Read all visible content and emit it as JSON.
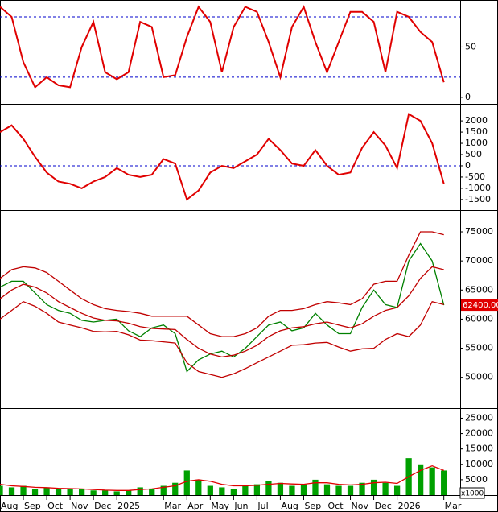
{
  "chart_data": [
    {
      "type": "line",
      "ylim": [
        -6.5,
        96.8
      ],
      "yticks": [
        0,
        50
      ],
      "levels": [
        20,
        80
      ],
      "xlim": [
        0,
        19.7
      ],
      "x": [
        0,
        0.5,
        1,
        1.5,
        2,
        2.5,
        3,
        3.5,
        4,
        4.5,
        5,
        5.5,
        6,
        6.5,
        7,
        7.5,
        8,
        8.5,
        9,
        9.5,
        10,
        10.5,
        11,
        11.5,
        12,
        12.5,
        13,
        13.5,
        14,
        14.5,
        15,
        15.5,
        16,
        16.5,
        17,
        17.5,
        18,
        18.5,
        19
      ],
      "series": [
        {
          "color": "#e00000",
          "values": [
            90,
            80,
            35,
            10,
            20,
            12,
            10,
            50,
            75,
            25,
            18,
            25,
            75,
            70,
            20,
            22,
            60,
            90,
            75,
            25,
            70,
            90,
            85,
            55,
            20,
            70,
            90,
            55,
            25,
            55,
            85,
            85,
            75,
            25,
            85,
            80,
            65,
            55,
            15
          ]
        }
      ]
    },
    {
      "type": "line",
      "ylim": [
        -1970,
        2720
      ],
      "yticks": [
        -1500,
        -1000,
        -500,
        0,
        500,
        1000,
        1500,
        2000
      ],
      "levels": [
        0
      ],
      "xlim": [
        0,
        19.7
      ],
      "x": [
        0,
        0.5,
        1,
        1.5,
        2,
        2.5,
        3,
        3.5,
        4,
        4.5,
        5,
        5.5,
        6,
        6.5,
        7,
        7.5,
        8,
        8.5,
        9,
        9.5,
        10,
        10.5,
        11,
        11.5,
        12,
        12.5,
        13,
        13.5,
        14,
        14.5,
        15,
        15.5,
        16,
        16.5,
        17,
        17.5,
        18,
        18.5,
        19
      ],
      "series": [
        {
          "color": "#e00000",
          "values": [
            1500,
            1800,
            1200,
            400,
            -300,
            -700,
            -800,
            -1000,
            -700,
            -500,
            -100,
            -400,
            -500,
            -400,
            300,
            100,
            -1500,
            -1100,
            -300,
            0,
            -100,
            200,
            500,
            1200,
            700,
            100,
            0,
            700,
            0,
            -400,
            -300,
            800,
            1500,
            900,
            -100,
            2300,
            2000,
            1000,
            -800
          ]
        }
      ]
    },
    {
      "type": "line",
      "ylim": [
        44700,
        78600
      ],
      "yticks": [
        50000,
        55000,
        60000,
        65000,
        70000,
        75000
      ],
      "xlim": [
        0,
        19.7
      ],
      "last_label": "62400.00",
      "x": [
        0,
        0.5,
        1,
        1.5,
        2,
        2.5,
        3,
        3.5,
        4,
        4.5,
        5,
        5.5,
        6,
        6.5,
        7,
        7.5,
        8,
        8.5,
        9,
        9.5,
        10,
        10.5,
        11,
        11.5,
        12,
        12.5,
        13,
        13.5,
        14,
        14.5,
        15,
        15.5,
        16,
        16.5,
        17,
        17.5,
        18,
        18.5,
        19
      ],
      "series": [
        {
          "color": "#008000",
          "values": [
            65500,
            66500,
            66500,
            64500,
            62500,
            61500,
            61000,
            59800,
            59500,
            59800,
            60000,
            58000,
            57000,
            58500,
            59000,
            57500,
            51000,
            53000,
            54000,
            54500,
            53500,
            55000,
            57000,
            59000,
            59500,
            58000,
            58500,
            61000,
            59000,
            57500,
            57500,
            62000,
            65000,
            62500,
            62000,
            70000,
            73000,
            70000,
            62400
          ]
        },
        {
          "color": "#c00000",
          "values": [
            67000,
            68500,
            69000,
            68800,
            68000,
            66500,
            65000,
            63500,
            62500,
            61800,
            61500,
            61300,
            61000,
            60500,
            60500,
            60500,
            60500,
            59000,
            57500,
            57000,
            57000,
            57500,
            58500,
            60500,
            61500,
            61500,
            61800,
            62500,
            63000,
            62800,
            62500,
            63500,
            66000,
            66500,
            66500,
            71000,
            75000,
            75000,
            74500
          ]
        },
        {
          "color": "#c00000",
          "values": [
            63500,
            65000,
            66000,
            65500,
            64500,
            63000,
            62000,
            61000,
            60200,
            59800,
            59700,
            59300,
            58700,
            58400,
            58300,
            58200,
            56500,
            55000,
            54000,
            53500,
            53800,
            54500,
            55500,
            57000,
            58000,
            58500,
            58700,
            59200,
            59500,
            59000,
            58500,
            59200,
            60500,
            61500,
            62000,
            64000,
            67000,
            69000,
            68500
          ]
        },
        {
          "color": "#c00000",
          "values": [
            60000,
            61500,
            63000,
            62200,
            61000,
            59500,
            59000,
            58500,
            57900,
            57800,
            57900,
            57300,
            56400,
            56300,
            56100,
            55900,
            52500,
            51000,
            50500,
            50000,
            50600,
            51500,
            52500,
            53500,
            54500,
            55500,
            55600,
            55900,
            56000,
            55200,
            54500,
            54900,
            55000,
            56500,
            57500,
            57000,
            59000,
            63000,
            62500
          ]
        }
      ]
    },
    {
      "type": "bar",
      "ylim": [
        0,
        28000
      ],
      "yticks": [
        5000,
        10000,
        15000,
        20000,
        25000
      ],
      "xlim": [
        0,
        19.7
      ],
      "unit_label": "x1000",
      "x": [
        0,
        0.5,
        1,
        1.5,
        2,
        2.5,
        3,
        3.5,
        4,
        4.5,
        5,
        5.5,
        6,
        6.5,
        7,
        7.5,
        8,
        8.5,
        9,
        9.5,
        10,
        10.5,
        11,
        11.5,
        12,
        12.5,
        13,
        13.5,
        14,
        14.5,
        15,
        15.5,
        16,
        16.5,
        17,
        17.5,
        18,
        18.5,
        19
      ],
      "xticks": [
        {
          "value": 0,
          "label": "Aug"
        },
        {
          "value": 1,
          "label": "Sep"
        },
        {
          "value": 2,
          "label": "Oct"
        },
        {
          "value": 3,
          "label": "Nov"
        },
        {
          "value": 4,
          "label": "Dec"
        },
        {
          "value": 5,
          "label": "2025"
        },
        {
          "value": 7,
          "label": "Mar"
        },
        {
          "value": 8,
          "label": "Apr"
        },
        {
          "value": 9,
          "label": "May"
        },
        {
          "value": 10,
          "label": "Jun"
        },
        {
          "value": 11,
          "label": "Jul"
        },
        {
          "value": 12,
          "label": "Aug"
        },
        {
          "value": 13,
          "label": "Sep"
        },
        {
          "value": 14,
          "label": "Oct"
        },
        {
          "value": 15,
          "label": "Nov"
        },
        {
          "value": 16,
          "label": "Dec"
        },
        {
          "value": 17,
          "label": "2026"
        },
        {
          "value": 19,
          "label": "Mar"
        }
      ],
      "series": [
        {
          "type": "bar",
          "color": "#00a000",
          "values": [
            3000,
            2500,
            3000,
            2000,
            2500,
            2000,
            2000,
            2000,
            1500,
            1500,
            1200,
            1500,
            2500,
            2000,
            3000,
            4000,
            8000,
            5000,
            3000,
            2500,
            2000,
            3000,
            3500,
            4500,
            4000,
            3000,
            3500,
            5000,
            3500,
            3000,
            3000,
            4000,
            5000,
            4000,
            3000,
            12000,
            10000,
            9000,
            8000
          ]
        },
        {
          "type": "line",
          "color": "#e00000",
          "values": [
            3500,
            3000,
            2800,
            2500,
            2400,
            2200,
            2100,
            2000,
            1800,
            1600,
            1500,
            1500,
            1800,
            2000,
            2500,
            3000,
            4500,
            5000,
            4500,
            3500,
            3000,
            3000,
            3200,
            3500,
            3800,
            3600,
            3500,
            4000,
            4000,
            3500,
            3300,
            3500,
            4000,
            4200,
            3800,
            6000,
            8000,
            9500,
            8000
          ]
        }
      ]
    }
  ]
}
